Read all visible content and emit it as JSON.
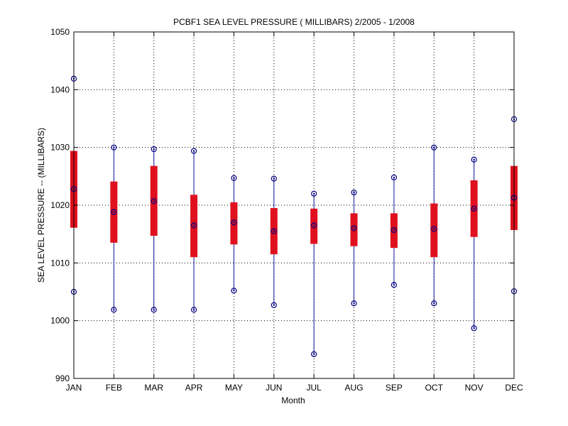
{
  "chart_data": {
    "type": "boxplot",
    "title": "PCBF1  SEA LEVEL PRESSURE ( MILLIBARS) 2/2005 - 1/2008",
    "xlabel": "Month",
    "ylabel": "SEA LEVEL PRESSURE -- (MILLIBARS)",
    "ylim": [
      990,
      1050
    ],
    "yticks": [
      990,
      1000,
      1010,
      1020,
      1030,
      1040,
      1050
    ],
    "grid": true,
    "categories": [
      "JAN",
      "FEB",
      "MAR",
      "APR",
      "MAY",
      "JUN",
      "JUL",
      "AUG",
      "SEP",
      "OCT",
      "NOV",
      "DEC"
    ],
    "series": [
      {
        "name": "min",
        "values": [
          1005.0,
          1001.9,
          1001.9,
          1001.9,
          1005.2,
          1002.7,
          994.2,
          1003.0,
          1006.2,
          1003.0,
          998.7,
          1005.1
        ]
      },
      {
        "name": "q1",
        "values": [
          1016.1,
          1013.5,
          1014.7,
          1011.0,
          1013.2,
          1011.5,
          1013.3,
          1012.9,
          1012.6,
          1011.0,
          1014.5,
          1015.7
        ]
      },
      {
        "name": "median",
        "values": [
          1022.8,
          1018.8,
          1020.7,
          1016.5,
          1017.0,
          1015.5,
          1016.5,
          1016.0,
          1015.7,
          1015.9,
          1019.4,
          1021.3
        ]
      },
      {
        "name": "q3",
        "values": [
          1029.4,
          1024.1,
          1026.8,
          1021.8,
          1020.5,
          1019.5,
          1019.4,
          1018.6,
          1018.6,
          1020.3,
          1024.3,
          1026.8
        ]
      },
      {
        "name": "max",
        "values": [
          1041.9,
          1030.0,
          1029.7,
          1029.4,
          1024.7,
          1024.6,
          1022.0,
          1022.2,
          1024.8,
          1030.0,
          1027.9,
          1034.9
        ]
      }
    ],
    "colors": {
      "box": "#e0101e",
      "whisker": "#1a1a9a",
      "marker": "#000080",
      "grid": "#000000"
    }
  }
}
